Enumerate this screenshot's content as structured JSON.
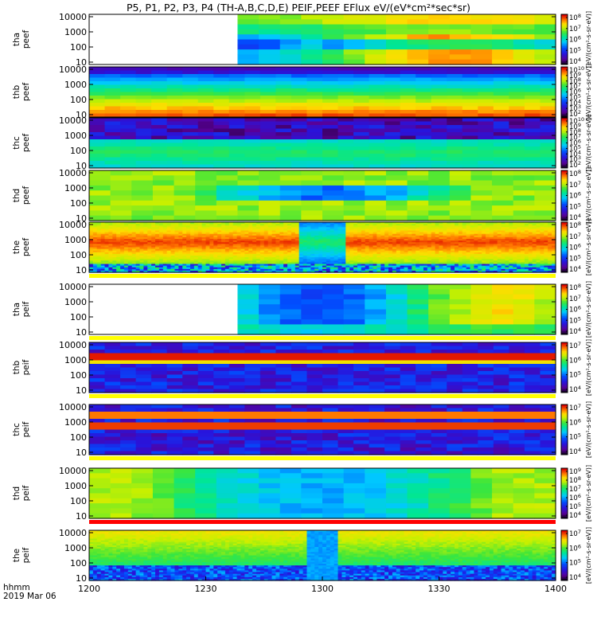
{
  "title": "P5, P1, P2, P3, P4 (TH-A,B,C,D,E) PEIF,PEEF EFlux eV/(eV*cm²*sec*sr)",
  "chart_data": {
    "type": "heatmap",
    "x_ticks": [
      "1200",
      "1230",
      "1300",
      "1330",
      "1400"
    ],
    "x_range": [
      "1200",
      "1400"
    ],
    "x_labels": [
      "hhmm",
      "2019 Mar 06"
    ],
    "y_ticks": [
      "10000",
      "1000",
      "100",
      "10"
    ],
    "y_range": [
      10,
      10000
    ],
    "y_scale": "log",
    "colorbar_label": "[eV/(cm²-s-sr-eV)]",
    "panels": [
      {
        "name": "tha\npeef",
        "cbar_exps": [
          "8",
          "7",
          "6",
          "5",
          "4"
        ],
        "data_start_frac": 0.32,
        "style": "blocky_a"
      },
      {
        "name": "thb\npeef",
        "cbar_exps": [
          "10",
          "9",
          "8",
          "7",
          "6",
          "5",
          "4",
          "3",
          "2"
        ],
        "data_start_frac": 0,
        "style": "band_red_low"
      },
      {
        "name": "thc\npeef",
        "cbar_exps": [
          "10",
          "9",
          "8",
          "7",
          "6",
          "5",
          "4",
          "3",
          "2"
        ],
        "data_start_frac": 0,
        "style": "band_blue_top"
      },
      {
        "name": "thd\npeef",
        "cbar_exps": [
          "8",
          "7",
          "6",
          "5",
          "4"
        ],
        "data_start_frac": 0,
        "style": "blocky_d"
      },
      {
        "name": "the\npeef",
        "cbar_exps": [
          "8",
          "7",
          "6",
          "5",
          "4"
        ],
        "data_start_frac": 0,
        "style": "smooth_red"
      },
      {
        "name": "tha\npeif",
        "cbar_exps": [
          "8",
          "7",
          "6",
          "5",
          "4"
        ],
        "data_start_frac": 0.32,
        "style": "blocky_ion_a"
      },
      {
        "name": "thb\npeif",
        "cbar_exps": [
          "7",
          "6",
          "5",
          "4"
        ],
        "data_start_frac": 0,
        "style": "line_ion"
      },
      {
        "name": "thc\npeif",
        "cbar_exps": [
          "7",
          "6",
          "5",
          "4"
        ],
        "data_start_frac": 0,
        "style": "line_ion2"
      },
      {
        "name": "thd\npeif",
        "cbar_exps": [
          "9",
          "8",
          "7",
          "6",
          "5",
          "4"
        ],
        "data_start_frac": 0,
        "style": "blocky_ion_d"
      },
      {
        "name": "the\npeif",
        "cbar_exps": [
          "7",
          "6",
          "5",
          "4"
        ],
        "data_start_frac": 0,
        "style": "smooth_ion"
      }
    ]
  }
}
